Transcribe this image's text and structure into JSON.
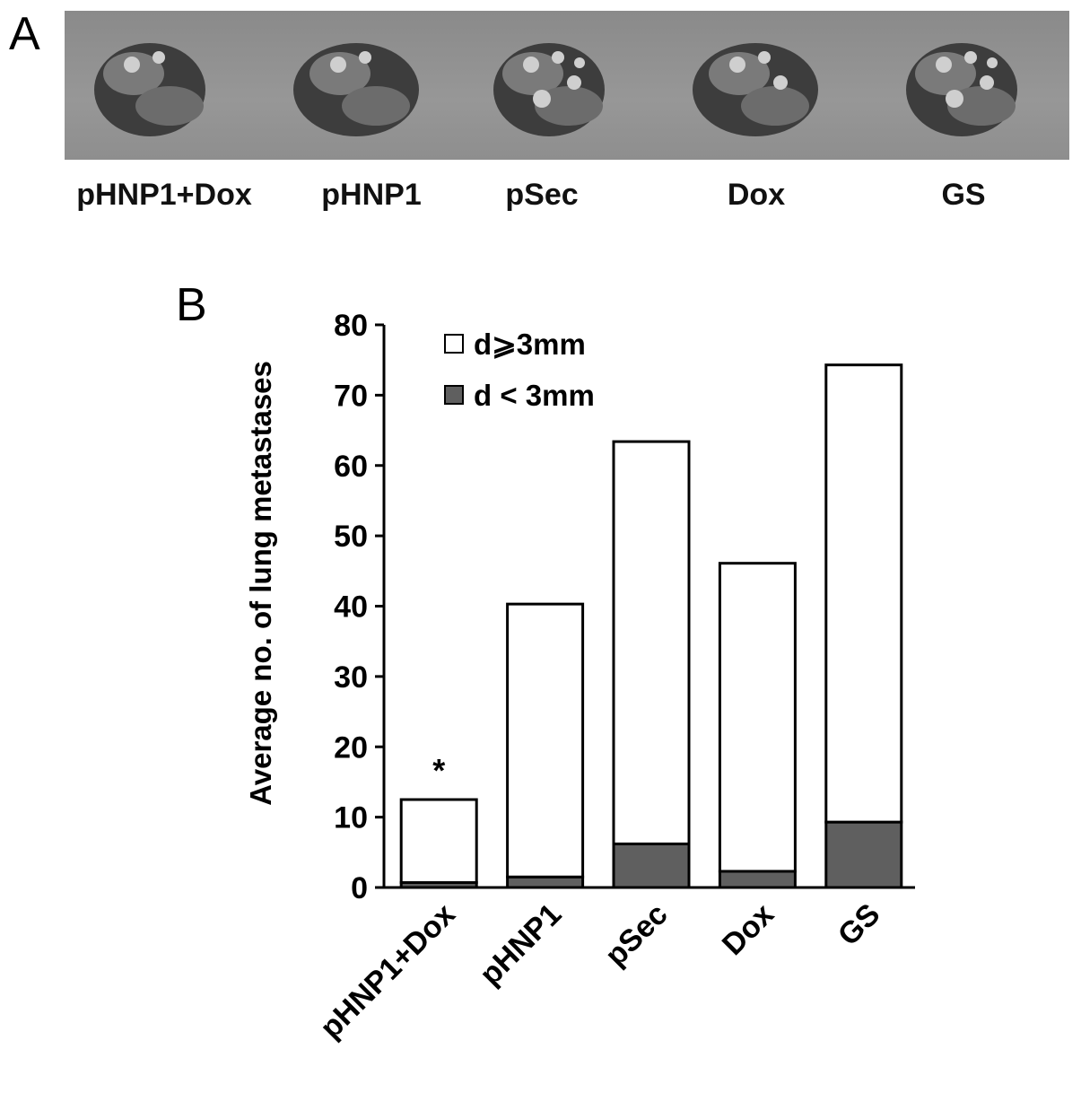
{
  "panel_a": {
    "letter": "A",
    "labels": [
      "pHNP1+Dox",
      "pHNP1",
      "pSec",
      "Dox",
      "GS"
    ]
  },
  "panel_b": {
    "letter": "B"
  },
  "colors": {
    "large": "#ffffff",
    "small": "#5f5f5f",
    "stroke": "#000000",
    "photo_bg": "#8f8f8f",
    "lung_dark": "#3d3d3d",
    "lung_light": "#cfcfcf"
  },
  "chart_data": {
    "type": "bar",
    "stacked": true,
    "title": "",
    "xlabel": "",
    "ylabel": "Average no. of lung metastases",
    "categories": [
      "pHNP1+Dox",
      "pHNP1",
      "pSec",
      "Dox",
      "GS"
    ],
    "series": [
      {
        "name": "d < 3mm",
        "values": [
          0.7,
          1.5,
          6.2,
          2.3,
          9.3
        ]
      },
      {
        "name": "d⩾3mm",
        "values": [
          11.8,
          38.8,
          57.2,
          43.8,
          65.0
        ]
      }
    ],
    "ylim": [
      0,
      80
    ],
    "yticks": [
      "0",
      "10",
      "20",
      "30",
      "40",
      "50",
      "60",
      "70",
      "80"
    ],
    "legend": [
      "d⩾3mm",
      "d < 3mm"
    ],
    "legend_position": "top-left",
    "annotations": [
      {
        "category": "pHNP1+Dox",
        "text": "*"
      }
    ],
    "grid": false
  }
}
